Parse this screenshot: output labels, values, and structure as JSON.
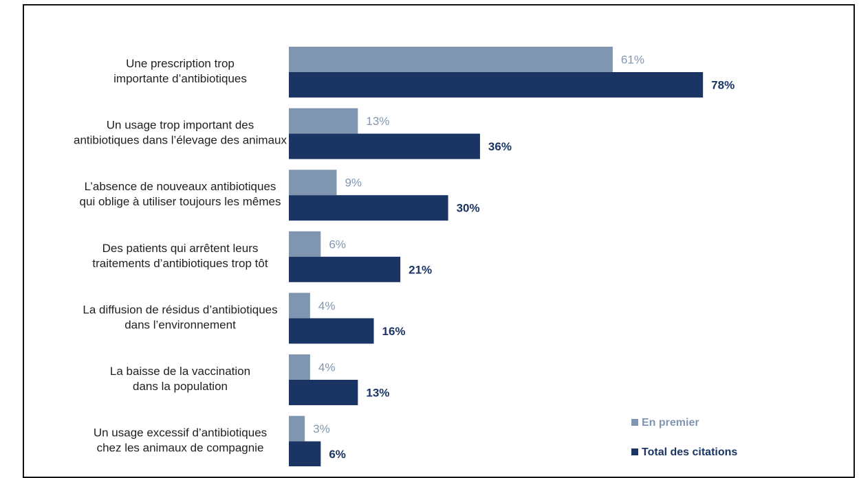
{
  "chart_data": {
    "type": "bar",
    "orientation": "horizontal",
    "categories": [
      [
        "Une prescription trop",
        "importante d’antibiotiques"
      ],
      [
        "Un usage trop important des",
        "antibiotiques dans l’élevage des animaux"
      ],
      [
        "L’absence de nouveaux antibiotiques",
        "qui oblige à utiliser toujours les mêmes"
      ],
      [
        "Des patients qui arrêtent leurs",
        "traitements d’antibiotiques trop tôt"
      ],
      [
        "La diffusion de résidus d’antibiotiques",
        "dans l’environnement"
      ],
      [
        "La baisse de la vaccination",
        "dans la population"
      ],
      [
        "Un usage excessif d’antibiotiques",
        "chez les animaux de compagnie"
      ]
    ],
    "series": [
      {
        "name": "En premier",
        "values": [
          61,
          13,
          9,
          6,
          4,
          4,
          3
        ],
        "labels": [
          "61%",
          "13%",
          "9%",
          "6%",
          "4%",
          "4%",
          "3%"
        ],
        "color": "#8096b0"
      },
      {
        "name": "Total des citations",
        "values": [
          78,
          36,
          30,
          21,
          16,
          13,
          6
        ],
        "labels": [
          "78%",
          "36%",
          "30%",
          "21%",
          "16%",
          "13%",
          "6%"
        ],
        "color": "#1a3563"
      }
    ],
    "unit": "%",
    "xlim": [
      0,
      100
    ],
    "grid": false,
    "legend_position": "bottom-right"
  }
}
